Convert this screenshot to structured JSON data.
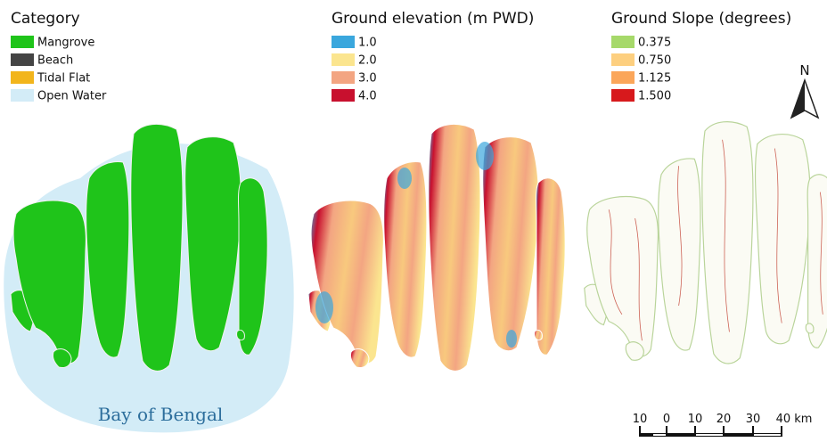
{
  "panels": [
    {
      "legend_title": "Category",
      "items": [
        {
          "label": "Mangrove",
          "color": "#1fc41a"
        },
        {
          "label": "Beach",
          "color": "#444444"
        },
        {
          "label": "Tidal Flat",
          "color": "#f2b51c"
        },
        {
          "label": "Open Water",
          "color": "#d3ecf7"
        }
      ]
    },
    {
      "legend_title": "Ground elevation (m PWD)",
      "items": [
        {
          "label": "1.0",
          "color": "#3aa7dd"
        },
        {
          "label": "2.0",
          "color": "#fbe58f"
        },
        {
          "label": "3.0",
          "color": "#f3a582"
        },
        {
          "label": "4.0",
          "color": "#c8102e"
        }
      ]
    },
    {
      "legend_title": "Ground Slope (degrees)",
      "items": [
        {
          "label": "0.375",
          "color": "#a6d96a"
        },
        {
          "label": "0.750",
          "color": "#fdcf7f"
        },
        {
          "label": "1.125",
          "color": "#fba65a"
        },
        {
          "label": "1.500",
          "color": "#d7191c"
        }
      ]
    }
  ],
  "annotation": "Bay of Bengal",
  "north_arrow": "N",
  "scale_bar": [
    "10",
    "0",
    "10",
    "20",
    "30",
    "40 km"
  ]
}
